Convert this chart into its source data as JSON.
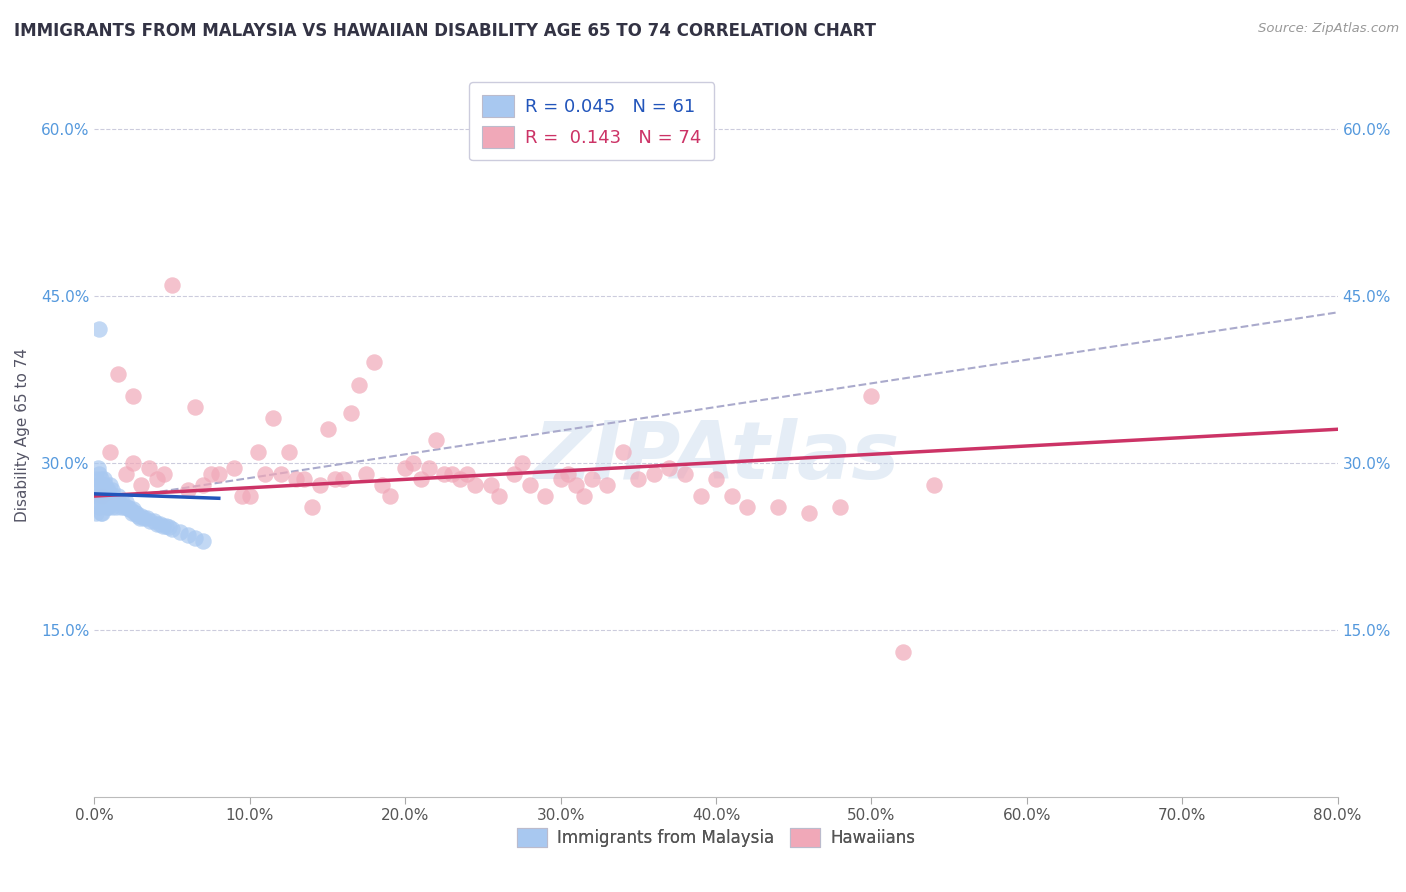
{
  "title": "IMMIGRANTS FROM MALAYSIA VS HAWAIIAN DISABILITY AGE 65 TO 74 CORRELATION CHART",
  "source_text": "Source: ZipAtlas.com",
  "ylabel": "Disability Age 65 to 74",
  "xlabel": "",
  "xlim": [
    0.0,
    0.8
  ],
  "ylim": [
    0.0,
    0.65
  ],
  "xtick_vals": [
    0.0,
    0.1,
    0.2,
    0.3,
    0.4,
    0.5,
    0.6,
    0.7,
    0.8
  ],
  "ytick_vals": [
    0.15,
    0.3,
    0.45,
    0.6
  ],
  "blue_color": "#a8c8f0",
  "pink_color": "#f0a8b8",
  "trendline_blue": "#2255bb",
  "trendline_pink": "#cc3366",
  "trendline_gray_color": "#aaaacc",
  "watermark": "ZIPAtlas",
  "blue_r": "0.045",
  "blue_n": "61",
  "pink_r": "0.143",
  "pink_n": "74",
  "blue_scatter_x": [
    0.001,
    0.001,
    0.001,
    0.002,
    0.002,
    0.002,
    0.003,
    0.003,
    0.003,
    0.004,
    0.004,
    0.004,
    0.005,
    0.005,
    0.005,
    0.006,
    0.006,
    0.007,
    0.007,
    0.008,
    0.008,
    0.009,
    0.009,
    0.01,
    0.01,
    0.011,
    0.011,
    0.012,
    0.013,
    0.014,
    0.015,
    0.016,
    0.017,
    0.018,
    0.019,
    0.02,
    0.021,
    0.022,
    0.023,
    0.024,
    0.025,
    0.026,
    0.027,
    0.028,
    0.029,
    0.03,
    0.032,
    0.034,
    0.036,
    0.038,
    0.04,
    0.042,
    0.044,
    0.046,
    0.048,
    0.05,
    0.055,
    0.06,
    0.065,
    0.07,
    0.003
  ],
  "blue_scatter_y": [
    0.285,
    0.27,
    0.255,
    0.295,
    0.28,
    0.265,
    0.29,
    0.275,
    0.26,
    0.285,
    0.27,
    0.255,
    0.28,
    0.265,
    0.255,
    0.285,
    0.27,
    0.28,
    0.265,
    0.275,
    0.26,
    0.275,
    0.26,
    0.28,
    0.265,
    0.275,
    0.26,
    0.27,
    0.265,
    0.26,
    0.27,
    0.265,
    0.26,
    0.265,
    0.26,
    0.265,
    0.26,
    0.258,
    0.258,
    0.255,
    0.258,
    0.255,
    0.255,
    0.252,
    0.25,
    0.252,
    0.25,
    0.25,
    0.248,
    0.248,
    0.245,
    0.245,
    0.243,
    0.243,
    0.242,
    0.24,
    0.238,
    0.235,
    0.232,
    0.23,
    0.42
  ],
  "pink_scatter_x": [
    0.005,
    0.01,
    0.015,
    0.02,
    0.025,
    0.025,
    0.03,
    0.035,
    0.04,
    0.045,
    0.05,
    0.06,
    0.065,
    0.07,
    0.075,
    0.08,
    0.09,
    0.095,
    0.1,
    0.105,
    0.11,
    0.115,
    0.12,
    0.125,
    0.13,
    0.135,
    0.14,
    0.145,
    0.15,
    0.155,
    0.16,
    0.165,
    0.17,
    0.175,
    0.18,
    0.185,
    0.19,
    0.2,
    0.205,
    0.21,
    0.215,
    0.22,
    0.225,
    0.23,
    0.235,
    0.24,
    0.245,
    0.255,
    0.26,
    0.27,
    0.275,
    0.28,
    0.29,
    0.3,
    0.305,
    0.31,
    0.315,
    0.32,
    0.33,
    0.34,
    0.35,
    0.36,
    0.37,
    0.38,
    0.39,
    0.4,
    0.41,
    0.42,
    0.44,
    0.46,
    0.48,
    0.5,
    0.52,
    0.54
  ],
  "pink_scatter_y": [
    0.27,
    0.31,
    0.38,
    0.29,
    0.3,
    0.36,
    0.28,
    0.295,
    0.285,
    0.29,
    0.46,
    0.275,
    0.35,
    0.28,
    0.29,
    0.29,
    0.295,
    0.27,
    0.27,
    0.31,
    0.29,
    0.34,
    0.29,
    0.31,
    0.285,
    0.285,
    0.26,
    0.28,
    0.33,
    0.285,
    0.285,
    0.345,
    0.37,
    0.29,
    0.39,
    0.28,
    0.27,
    0.295,
    0.3,
    0.285,
    0.295,
    0.32,
    0.29,
    0.29,
    0.285,
    0.29,
    0.28,
    0.28,
    0.27,
    0.29,
    0.3,
    0.28,
    0.27,
    0.285,
    0.29,
    0.28,
    0.27,
    0.285,
    0.28,
    0.31,
    0.285,
    0.29,
    0.295,
    0.29,
    0.27,
    0.285,
    0.27,
    0.26,
    0.26,
    0.255,
    0.26,
    0.36,
    0.13,
    0.28
  ],
  "blue_trendline_x0": 0.0,
  "blue_trendline_x1": 0.08,
  "blue_trendline_y0": 0.272,
  "blue_trendline_y1": 0.268,
  "pink_trendline_x0": 0.0,
  "pink_trendline_x1": 0.8,
  "pink_trendline_y0": 0.27,
  "pink_trendline_y1": 0.33,
  "gray_trendline_x0": 0.0,
  "gray_trendline_x1": 0.8,
  "gray_trendline_y0": 0.265,
  "gray_trendline_y1": 0.435
}
